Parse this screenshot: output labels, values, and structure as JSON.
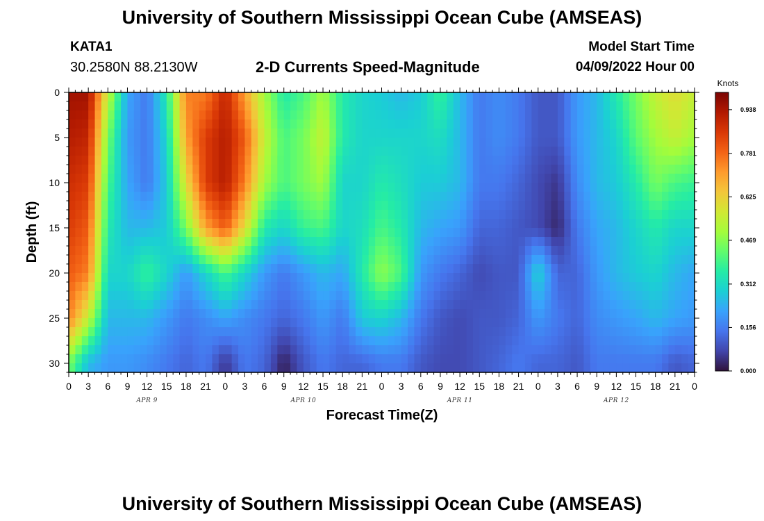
{
  "header": {
    "title": "University of Southern Mississippi Ocean Cube (AMSEAS)",
    "station": "KATA1",
    "coordinates": "30.2580N  88.2130W",
    "subtitle": "2-D Currents Speed-Magnitude",
    "model_start_label": "Model Start Time",
    "model_start_value": "04/09/2022 Hour 00"
  },
  "footer": {
    "title": "University of Southern Mississippi Ocean Cube (AMSEAS)"
  },
  "chart_data": {
    "type": "heatmap",
    "title": "2-D Currents Speed-Magnitude",
    "xlabel": "Forecast Time(Z)",
    "ylabel": "Depth (ft)",
    "x_hours_range": [
      0,
      96
    ],
    "y_range": [
      0,
      31
    ],
    "y_inverted": true,
    "x_tick_labels": [
      "0",
      "3",
      "6",
      "9",
      "12",
      "15",
      "18",
      "21",
      "0",
      "3",
      "6",
      "9",
      "12",
      "15",
      "18",
      "21",
      "0",
      "3",
      "6",
      "9",
      "12",
      "15",
      "18",
      "21",
      "0",
      "3",
      "6",
      "9",
      "12",
      "15",
      "18",
      "21",
      "0"
    ],
    "y_tick_labels": [
      "0",
      "5",
      "10",
      "15",
      "20",
      "25",
      "30"
    ],
    "date_labels": [
      "APR 9",
      "APR 10",
      "APR 11",
      "APR 12"
    ],
    "colorbar": {
      "unit": "Knots",
      "range": [
        0,
        1.0
      ],
      "tick_labels": [
        "0.938",
        "0.781",
        "0.625",
        "0.469",
        "0.312",
        "0.156",
        "0.000"
      ],
      "tick_values": [
        0.938,
        0.781,
        0.625,
        0.469,
        0.312,
        0.156,
        0.0
      ],
      "colors": [
        "#30123b",
        "#4145ab",
        "#4675ed",
        "#39a2fc",
        "#1bcfd4",
        "#24eca6",
        "#61fc6c",
        "#a4fc3b",
        "#d1e834",
        "#f3c63a",
        "#fe9b2d",
        "#f36315",
        "#d93806",
        "#b11901",
        "#7a0403"
      ]
    },
    "grid_hours": [
      0,
      3,
      6,
      9,
      12,
      15,
      18,
      21,
      24,
      27,
      30,
      33,
      36,
      39,
      42,
      45,
      48,
      51,
      54,
      57,
      60,
      63,
      66,
      69,
      72,
      75,
      78,
      81,
      84,
      87,
      90,
      93,
      96
    ],
    "grid_depths": [
      0,
      5,
      10,
      15,
      20,
      25,
      30
    ],
    "speed_knots": [
      [
        0.95,
        0.95,
        0.55,
        0.22,
        0.15,
        0.35,
        0.75,
        0.75,
        0.9,
        0.7,
        0.5,
        0.35,
        0.4,
        0.5,
        0.35,
        0.3,
        0.28,
        0.25,
        0.28,
        0.38,
        0.25,
        0.15,
        0.18,
        0.15,
        0.1,
        0.1,
        0.2,
        0.25,
        0.35,
        0.45,
        0.55,
        0.6,
        0.55
      ],
      [
        0.92,
        0.9,
        0.45,
        0.2,
        0.15,
        0.3,
        0.7,
        0.85,
        0.92,
        0.8,
        0.55,
        0.4,
        0.45,
        0.55,
        0.35,
        0.3,
        0.3,
        0.3,
        0.3,
        0.32,
        0.25,
        0.15,
        0.18,
        0.15,
        0.1,
        0.1,
        0.2,
        0.25,
        0.3,
        0.42,
        0.5,
        0.55,
        0.5
      ],
      [
        0.88,
        0.85,
        0.4,
        0.22,
        0.15,
        0.28,
        0.6,
        0.85,
        0.92,
        0.75,
        0.5,
        0.4,
        0.45,
        0.5,
        0.3,
        0.3,
        0.35,
        0.32,
        0.28,
        0.28,
        0.25,
        0.15,
        0.15,
        0.12,
        0.08,
        0.05,
        0.18,
        0.25,
        0.28,
        0.35,
        0.45,
        0.4,
        0.38
      ],
      [
        0.85,
        0.8,
        0.35,
        0.25,
        0.25,
        0.28,
        0.45,
        0.7,
        0.8,
        0.6,
        0.35,
        0.3,
        0.38,
        0.4,
        0.3,
        0.32,
        0.4,
        0.35,
        0.25,
        0.22,
        0.2,
        0.12,
        0.12,
        0.1,
        0.08,
        0.03,
        0.15,
        0.22,
        0.25,
        0.3,
        0.35,
        0.3,
        0.3
      ],
      [
        0.8,
        0.75,
        0.3,
        0.3,
        0.38,
        0.3,
        0.2,
        0.3,
        0.4,
        0.3,
        0.2,
        0.15,
        0.2,
        0.25,
        0.22,
        0.35,
        0.48,
        0.4,
        0.2,
        0.15,
        0.12,
        0.08,
        0.1,
        0.1,
        0.3,
        0.12,
        0.12,
        0.2,
        0.25,
        0.28,
        0.3,
        0.25,
        0.22
      ],
      [
        0.75,
        0.55,
        0.25,
        0.25,
        0.25,
        0.2,
        0.15,
        0.18,
        0.22,
        0.18,
        0.15,
        0.12,
        0.15,
        0.2,
        0.15,
        0.28,
        0.3,
        0.25,
        0.15,
        0.1,
        0.08,
        0.1,
        0.1,
        0.12,
        0.2,
        0.15,
        0.12,
        0.18,
        0.2,
        0.22,
        0.25,
        0.22,
        0.2
      ],
      [
        0.45,
        0.25,
        0.2,
        0.2,
        0.18,
        0.15,
        0.12,
        0.15,
        0.05,
        0.15,
        0.12,
        0.02,
        0.1,
        0.15,
        0.12,
        0.12,
        0.15,
        0.15,
        0.1,
        0.08,
        0.08,
        0.1,
        0.12,
        0.15,
        0.12,
        0.12,
        0.1,
        0.15,
        0.15,
        0.15,
        0.15,
        0.1,
        0.12
      ]
    ]
  }
}
